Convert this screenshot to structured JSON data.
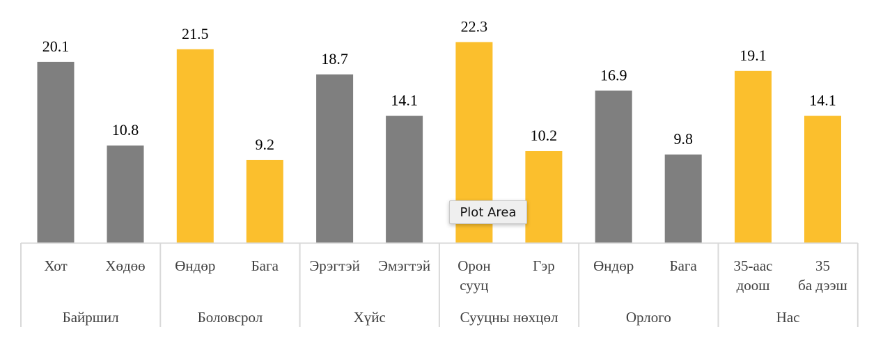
{
  "chart_data": {
    "type": "bar",
    "groups": [
      {
        "label": "Байршил",
        "categories": [
          "Хот",
          "Хөдөө"
        ],
        "values": [
          20.1,
          10.8
        ],
        "color": "#7f7f7f"
      },
      {
        "label": "Боловсрол",
        "categories": [
          "Өндөр",
          "Бага"
        ],
        "values": [
          21.5,
          9.2
        ],
        "color": "#fbbf2d"
      },
      {
        "label": "Хүйс",
        "categories": [
          "Эрэгтэй",
          "Эмэгтэй"
        ],
        "values": [
          18.7,
          14.1
        ],
        "color": "#7f7f7f"
      },
      {
        "label": "Сууцны нөхцөл",
        "categories": [
          "Орон сууц",
          "Гэр"
        ],
        "values": [
          22.3,
          10.2
        ],
        "color": "#fbbf2d"
      },
      {
        "label": "Орлого",
        "categories": [
          "Өндөр",
          "Бага"
        ],
        "values": [
          16.9,
          9.8
        ],
        "color": "#7f7f7f"
      },
      {
        "label": "Нас",
        "categories": [
          "35-аас доош",
          "35 ба дээш"
        ],
        "values": [
          19.1,
          14.1
        ],
        "color": "#fbbf2d"
      }
    ],
    "data_labels": true,
    "grid": false,
    "legend": "none",
    "ylim": [
      0,
      25
    ]
  },
  "tooltip": {
    "text": "Plot Area"
  }
}
